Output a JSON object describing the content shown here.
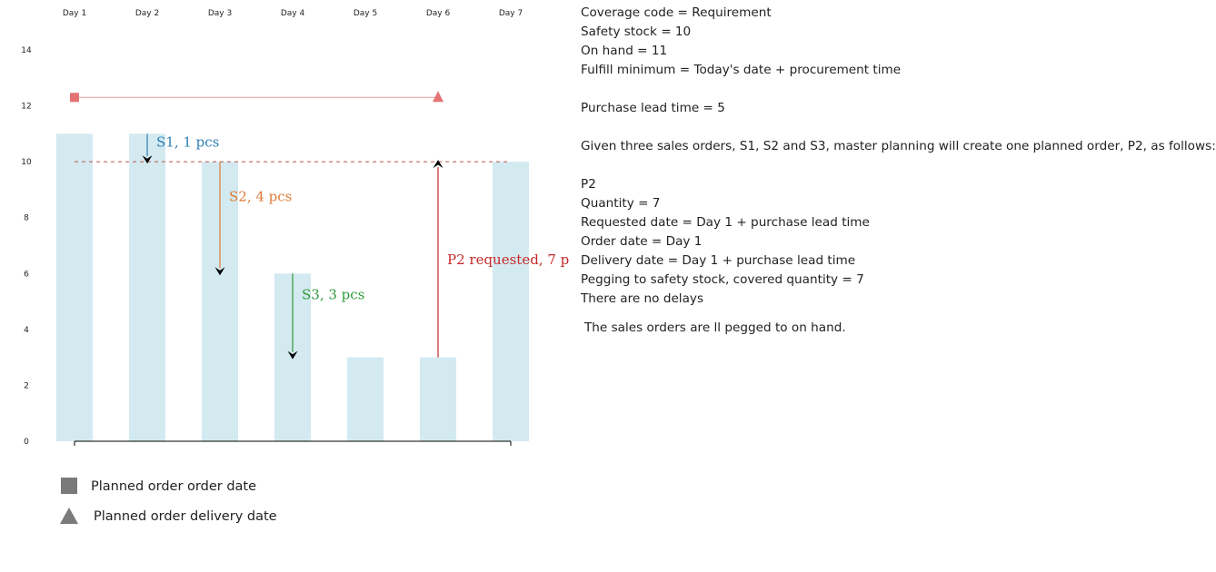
{
  "chart_data": {
    "type": "bar",
    "categories": [
      "Day 1",
      "Day 2",
      "Day 3",
      "Day 4",
      "Day 5",
      "Day 6",
      "Day 7"
    ],
    "values": [
      11,
      11,
      10,
      6,
      3,
      3,
      10
    ],
    "y_ticks": [
      "0",
      "2",
      "4",
      "6",
      "8",
      "10",
      "12",
      "14"
    ],
    "ylim": [
      0,
      15.2
    ],
    "safety_stock_level": 10,
    "planned_order_span": {
      "order_date_day": 1,
      "delivery_date_day": 6,
      "level": 12.3
    },
    "annotations": [
      {
        "label": "S1, 1 pcs",
        "category": "Day 2",
        "from": 11,
        "to": 10,
        "color": "#2e7eb3"
      },
      {
        "label": "S2, 4 pcs",
        "category": "Day 3",
        "from": 10,
        "to": 6,
        "color": "#e07b39"
      },
      {
        "label": "S3, 3 pcs",
        "category": "Day 4",
        "from": 6,
        "to": 3,
        "color": "#2e9a3a"
      },
      {
        "label": "P2 requested, 7 p",
        "category": "Day 6",
        "from": 3,
        "to": 10,
        "color": "#c62828"
      }
    ],
    "colors": {
      "bar": "#d3eaf1",
      "safety_line": "#c0504d",
      "span_line": "#e89a9a",
      "span_marker": "#e57373",
      "axis": "#000000"
    },
    "legend": [
      {
        "label": "Planned order order date",
        "marker": "square"
      },
      {
        "label": "Planned order delivery date",
        "marker": "triangle"
      }
    ],
    "legend_color": "#7a7a7a"
  },
  "notes": {
    "lines": [
      "Coverage code = Requirement",
      "Safety stock = 10",
      "On hand = 11",
      "Fulfill minimum = Today's date + procurement time",
      "",
      "Purchase lead time = 5",
      "",
      "Given three sales orders, S1, S2 and S3, master planning will create one planned order, P2, as follows:",
      "",
      "P2",
      "Quantity = 7",
      "Requested date = Day 1 + purchase lead time",
      "Order date = Day 1",
      "Delivery date = Day 1 + purchase lead time",
      "Pegging to safety stock, covered quantity = 7",
      "There are no delays"
    ],
    "footer": "The sales orders are ll pegged to on hand."
  }
}
